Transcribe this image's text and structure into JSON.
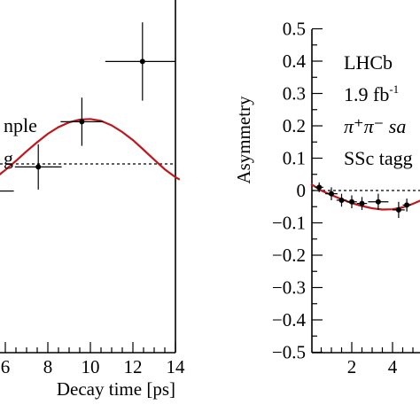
{
  "chart_data": [
    {
      "type": "scatter",
      "xlabel": "Decay time [ps]",
      "ylabel": "",
      "xlim": [
        5.2,
        14.2
      ],
      "ylim": [
        -0.5,
        0.5
      ],
      "x_ticks": [
        "6",
        "8",
        "10",
        "12",
        "14"
      ],
      "reference_line": 0,
      "legend_lines": [
        "nple",
        "g"
      ],
      "series": [
        {
          "kind": "points",
          "x": [
            5.5,
            7.55,
            9.6,
            12.45
          ],
          "y": [
            -0.09,
            -0.01,
            0.14,
            0.34
          ],
          "xerr": [
            0.9,
            1.1,
            1.0,
            1.75
          ],
          "yerr": [
            0.04,
            0.075,
            0.08,
            0.13
          ]
        },
        {
          "kind": "fit",
          "x": [
            5.2,
            5.5,
            6.0,
            6.5,
            7.0,
            7.5,
            8.0,
            8.5,
            9.0,
            9.5,
            10.0,
            10.5,
            11.0,
            11.5,
            12.0,
            12.5,
            13.0,
            13.5,
            14.0,
            14.2
          ],
          "y": [
            -0.06,
            -0.048,
            -0.02,
            0.01,
            0.042,
            0.072,
            0.1,
            0.122,
            0.138,
            0.147,
            0.149,
            0.143,
            0.128,
            0.106,
            0.079,
            0.047,
            0.014,
            -0.018,
            -0.044,
            -0.052
          ]
        }
      ]
    },
    {
      "type": "scatter",
      "xlabel": "",
      "ylabel": "Asymmetry",
      "xlim": [
        0,
        5.6
      ],
      "ylim": [
        -0.5,
        0.5
      ],
      "y_ticks": [
        "0.5",
        "0.4",
        "0.3",
        "0.2",
        "0.1",
        "0",
        "−0.1",
        "−0.2",
        "−0.3",
        "−0.4",
        "−0.5"
      ],
      "x_ticks": [
        "2",
        "4"
      ],
      "reference_line": 0,
      "legend_lines": [
        "LHCb",
        "1.9 fb",
        "π⁺π⁻ sa",
        "SSc tagg"
      ],
      "legend_superscript": "-1",
      "series": [
        {
          "kind": "points",
          "x": [
            0.4,
            1.0,
            1.5,
            2.0,
            2.5,
            3.3,
            4.3,
            4.7
          ],
          "y": [
            0.01,
            -0.01,
            -0.03,
            -0.035,
            -0.04,
            -0.035,
            -0.06,
            -0.045
          ],
          "xerr": [
            0.2,
            0.3,
            0.25,
            0.25,
            0.25,
            0.5,
            0.3,
            0.2
          ],
          "yerr": [
            0.015,
            0.02,
            0.02,
            0.02,
            0.02,
            0.025,
            0.025,
            0.02
          ]
        },
        {
          "kind": "fit",
          "x": [
            0.0,
            0.5,
            1.0,
            1.5,
            2.0,
            2.5,
            3.0,
            3.5,
            4.0,
            4.5,
            5.0,
            5.6
          ],
          "y": [
            0.02,
            0.0,
            -0.014,
            -0.027,
            -0.039,
            -0.048,
            -0.055,
            -0.059,
            -0.058,
            -0.052,
            -0.041,
            -0.025
          ]
        }
      ]
    }
  ]
}
